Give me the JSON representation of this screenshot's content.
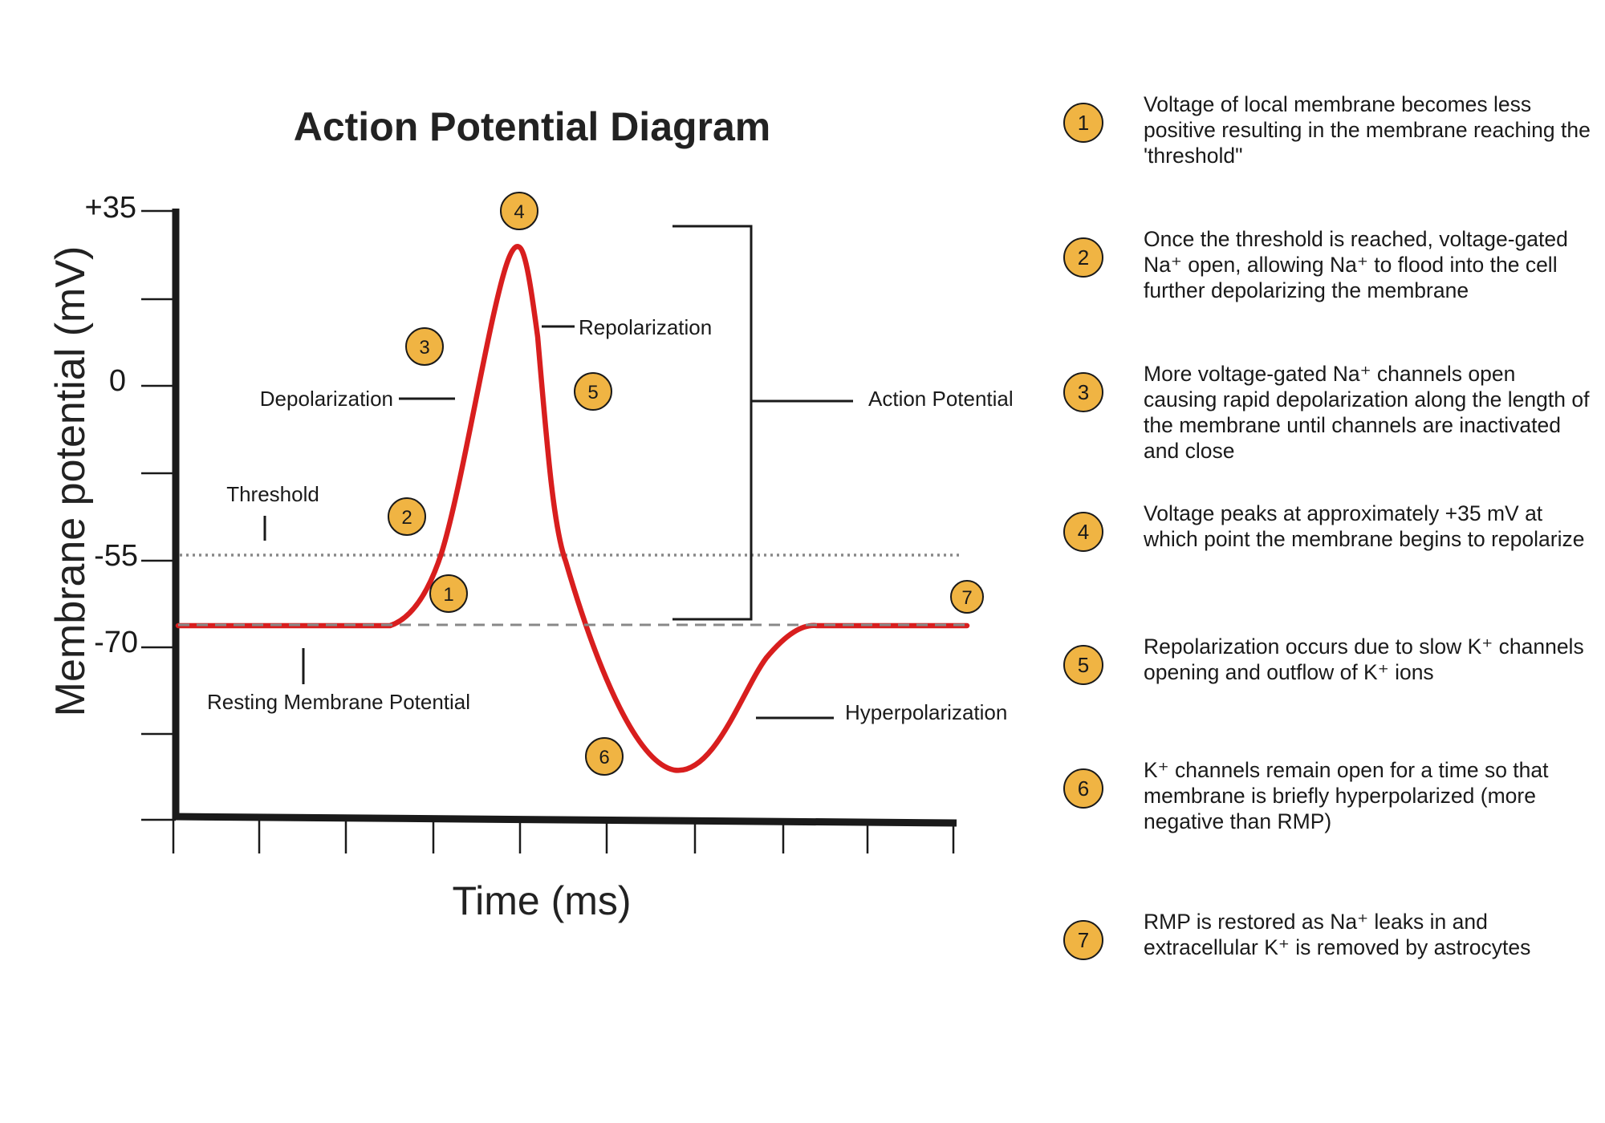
{
  "title": "Action Potential Diagram",
  "y_axis": {
    "label": "Membrane potential (mV)",
    "ticks": [
      "+35",
      "0",
      "-55",
      "-70"
    ]
  },
  "x_axis": {
    "label": "Time (ms)"
  },
  "annotations": {
    "threshold": "Threshold",
    "resting": "Resting Membrane Potential",
    "depolarization": "Depolarization",
    "repolarization": "Repolarization",
    "action_potential": "Action Potential",
    "hyperpolarization": "Hyperpolarization"
  },
  "markers": [
    "1",
    "2",
    "3",
    "4",
    "5",
    "6",
    "7"
  ],
  "legend": [
    {
      "num": "1",
      "text": "Voltage of local membrane becomes less positive resulting in the membrane reaching the 'threshold\""
    },
    {
      "num": "2",
      "text": "Once the threshold is reached, voltage-gated Na⁺ open, allowing Na⁺ to flood into the cell further depolarizing the membrane"
    },
    {
      "num": "3",
      "text": "More voltage-gated Na⁺ channels open causing rapid depolarization along the length of the membrane until channels are inactivated and close"
    },
    {
      "num": "4",
      "text": "Voltage peaks at approximately +35 mV at which point the membrane begins to repolarize"
    },
    {
      "num": "5",
      "text": "Repolarization occurs due to slow K⁺ channels opening and outflow of K⁺ ions"
    },
    {
      "num": "6",
      "text": "K⁺  channels remain open for a time so that membrane is briefly hyperpolarized (more negative than RMP)"
    },
    {
      "num": "7",
      "text": "RMP is restored as Na⁺ leaks in and extracellular K⁺  is removed by astrocytes"
    }
  ],
  "colors": {
    "curve": "#d81e1e",
    "marker": "#f0b443",
    "axis": "#1a1a1a",
    "dashed_line": "#888888"
  }
}
